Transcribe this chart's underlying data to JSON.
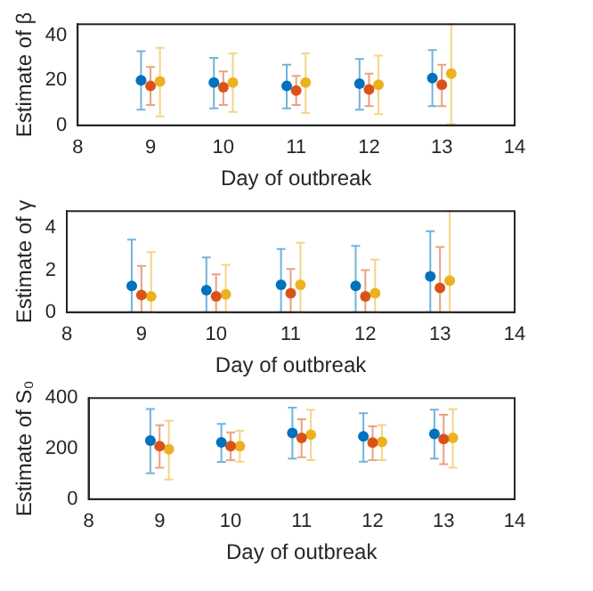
{
  "chart_data": [
    {
      "type": "scatter",
      "xlabel": "Day of outbreak",
      "ylabel": "Estimate of β",
      "xlim": [
        8,
        14
      ],
      "xticks": [
        8,
        9,
        10,
        11,
        12,
        13,
        14
      ],
      "ylim": [
        0,
        45
      ],
      "yticks": [
        0,
        20,
        40
      ],
      "grid": false,
      "legend": false,
      "marker": "circle",
      "series": [
        {
          "color": "#0072bd",
          "x": [
            8.87,
            9.87,
            10.87,
            11.87,
            12.87
          ],
          "values": [
            20,
            19,
            17.5,
            18.5,
            21
          ],
          "errors": [
            [
              7,
              33
            ],
            [
              7.5,
              30
            ],
            [
              7.5,
              27
            ],
            [
              7,
              29.5
            ],
            [
              8.5,
              33.5
            ]
          ]
        },
        {
          "color": "#d95319",
          "x": [
            9,
            10,
            11,
            12,
            13
          ],
          "values": [
            17.5,
            17,
            15.5,
            16,
            18
          ],
          "errors": [
            [
              9,
              26
            ],
            [
              9,
              24
            ],
            [
              9,
              22
            ],
            [
              8.5,
              23
            ],
            [
              8.5,
              27
            ]
          ]
        },
        {
          "color": "#edb120",
          "x": [
            9.13,
            10.13,
            11.13,
            12.13,
            13.13
          ],
          "values": [
            19.5,
            19,
            19,
            18,
            23
          ],
          "errors": [
            [
              4,
              34.5
            ],
            [
              6,
              32
            ],
            [
              5.5,
              32
            ],
            [
              5,
              31
            ],
            [
              0.5,
              45
            ]
          ]
        }
      ]
    },
    {
      "type": "scatter",
      "xlabel": "Day of outbreak",
      "ylabel": "Estimate of γ",
      "xlim": [
        8,
        14
      ],
      "xticks": [
        8,
        9,
        10,
        11,
        12,
        13,
        14
      ],
      "ylim": [
        0,
        4.8
      ],
      "yticks": [
        0,
        2,
        4
      ],
      "grid": false,
      "legend": false,
      "marker": "circle",
      "series": [
        {
          "color": "#0072bd",
          "x": [
            8.87,
            9.87,
            10.87,
            11.87,
            12.87
          ],
          "values": [
            1.25,
            1.05,
            1.3,
            1.25,
            1.7
          ],
          "errors": [
            [
              0,
              3.45
            ],
            [
              0,
              2.6
            ],
            [
              0,
              3.0
            ],
            [
              0,
              3.15
            ],
            [
              0,
              3.85
            ]
          ]
        },
        {
          "color": "#d95319",
          "x": [
            9,
            10,
            11,
            12,
            13
          ],
          "values": [
            0.82,
            0.75,
            0.9,
            0.75,
            1.15
          ],
          "errors": [
            [
              0,
              2.2
            ],
            [
              0,
              1.8
            ],
            [
              0,
              2.05
            ],
            [
              0,
              2.0
            ],
            [
              0,
              3.1
            ]
          ]
        },
        {
          "color": "#edb120",
          "x": [
            9.13,
            10.13,
            11.13,
            12.13,
            13.13
          ],
          "values": [
            0.75,
            0.85,
            1.3,
            0.9,
            1.5
          ],
          "errors": [
            [
              0,
              2.85
            ],
            [
              0,
              2.25
            ],
            [
              0,
              3.3
            ],
            [
              0,
              2.5
            ],
            [
              0,
              4.8
            ]
          ]
        }
      ]
    },
    {
      "type": "scatter",
      "xlabel": "Day of outbreak",
      "ylabel": "Estimate of S₀",
      "xlim": [
        8,
        14
      ],
      "xticks": [
        8,
        9,
        10,
        11,
        12,
        13,
        14
      ],
      "ylim": [
        0,
        400
      ],
      "yticks": [
        0,
        200,
        400
      ],
      "grid": false,
      "legend": false,
      "marker": "circle",
      "series": [
        {
          "color": "#0072bd",
          "x": [
            8.87,
            9.87,
            10.87,
            11.87,
            12.87
          ],
          "values": [
            232,
            225,
            262,
            248,
            258
          ],
          "errors": [
            [
              102,
              357
            ],
            [
              147,
              298
            ],
            [
              160,
              362
            ],
            [
              148,
              340
            ],
            [
              160,
              354
            ]
          ]
        },
        {
          "color": "#d95319",
          "x": [
            9,
            10,
            11,
            12,
            13
          ],
          "values": [
            210,
            210,
            242,
            224,
            238
          ],
          "errors": [
            [
              124,
              292
            ],
            [
              154,
              264
            ],
            [
              166,
              316
            ],
            [
              154,
              288
            ],
            [
              138,
              334
            ]
          ]
        },
        {
          "color": "#edb120",
          "x": [
            9.13,
            10.13,
            11.13,
            12.13,
            13.13
          ],
          "values": [
            197,
            210,
            255,
            226,
            242
          ],
          "errors": [
            [
              78,
              310
            ],
            [
              148,
              270
            ],
            [
              154,
              353
            ],
            [
              154,
              293
            ],
            [
              124,
              356
            ]
          ]
        }
      ]
    }
  ]
}
